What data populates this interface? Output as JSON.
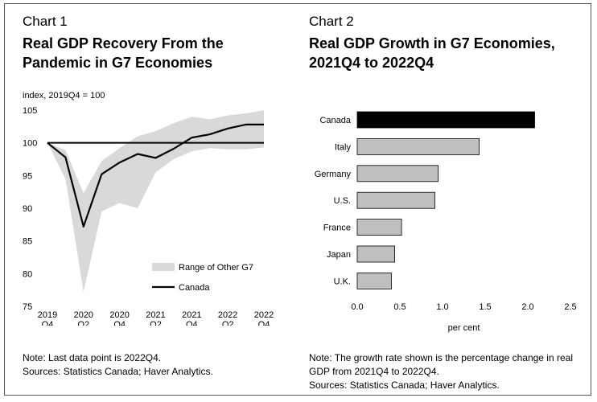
{
  "chart_data": [
    {
      "type": "line",
      "label": "Chart 1",
      "title": "Real GDP Recovery From the Pandemic in G7 Economies",
      "ylabel": "index, 2019Q4 = 100",
      "ylim": [
        75,
        105
      ],
      "yticks": [
        75,
        80,
        85,
        90,
        95,
        100,
        105
      ],
      "x": [
        "2019Q4",
        "2020Q1",
        "2020Q2",
        "2020Q3",
        "2020Q4",
        "2021Q1",
        "2021Q2",
        "2021Q3",
        "2021Q4",
        "2022Q1",
        "2022Q2",
        "2022Q3",
        "2022Q4"
      ],
      "xticks": [
        {
          "idx": 0,
          "top": "2019",
          "bottom": "Q4"
        },
        {
          "idx": 2,
          "top": "2020",
          "bottom": "Q2"
        },
        {
          "idx": 4,
          "top": "2020",
          "bottom": "Q4"
        },
        {
          "idx": 6,
          "top": "2021",
          "bottom": "Q2"
        },
        {
          "idx": 8,
          "top": "2021",
          "bottom": "Q4"
        },
        {
          "idx": 10,
          "top": "2022",
          "bottom": "Q2"
        },
        {
          "idx": 12,
          "top": "2022",
          "bottom": "Q4"
        }
      ],
      "reference_line": 100,
      "series": [
        {
          "name": "Canada",
          "values": [
            100,
            97.8,
            87.2,
            95.2,
            97.0,
            98.3,
            97.7,
            99.1,
            100.8,
            101.3,
            102.2,
            102.8,
            102.8
          ]
        },
        {
          "name": "Range of Other G7",
          "low": [
            100,
            94.5,
            77.2,
            89.5,
            90.8,
            90.0,
            95.5,
            97.5,
            98.7,
            99.2,
            99.0,
            99.0,
            99.3
          ],
          "high": [
            100,
            98.9,
            92.3,
            97.2,
            99.2,
            101.0,
            101.8,
            103.0,
            104.0,
            103.6,
            104.2,
            104.5,
            105.0
          ]
        }
      ],
      "legend": [
        {
          "name": "Range of Other G7",
          "kind": "area",
          "color": "#d9d9d9"
        },
        {
          "name": "Canada",
          "kind": "line",
          "color": "#000000"
        }
      ],
      "note": "Note: Last data point is 2022Q4.\nSources: Statistics Canada; Haver Analytics."
    },
    {
      "type": "bar",
      "orientation": "horizontal",
      "label": "Chart 2",
      "title": "Real GDP Growth in G7 Economies, 2021Q4 to 2022Q4",
      "categories": [
        "Canada",
        "Italy",
        "Germany",
        "U.S.",
        "France",
        "Japan",
        "U.K."
      ],
      "values": [
        2.08,
        1.43,
        0.95,
        0.91,
        0.52,
        0.44,
        0.4
      ],
      "colors": [
        "#000000",
        "#bfbfbf",
        "#bfbfbf",
        "#bfbfbf",
        "#bfbfbf",
        "#bfbfbf",
        "#bfbfbf"
      ],
      "xlim": [
        0,
        2.5
      ],
      "xticks": [
        "0.0",
        "0.5",
        "1.0",
        "1.5",
        "2.0",
        "2.5"
      ],
      "xlabel": "per cent",
      "note": "Note: The growth rate shown is the percentage change in real GDP from 2021Q4 to 2022Q4.\nSources: Statistics Canada; Haver Analytics."
    }
  ]
}
